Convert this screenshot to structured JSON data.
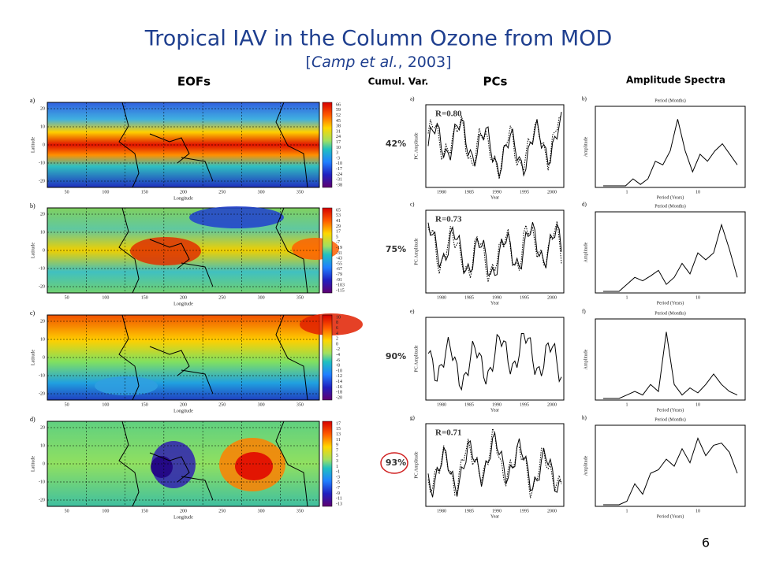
{
  "header": {
    "title": "Tropical IAV in the Column Ozone from MOD",
    "citation": [
      "[",
      "Camp et al.",
      ", 2003]"
    ]
  },
  "columns": {
    "eofs": "EOFs",
    "cumul_var": "Cumul. Var.",
    "pcs": "PCs",
    "spectra": "Amplitude Spectra"
  },
  "map_axes": {
    "xlabel": "Longitude",
    "ylabel": "Latitude",
    "lat_ticks": [
      "20",
      "10",
      "0",
      "-10",
      "-20"
    ],
    "lon_ticks": [
      "50",
      "100",
      "150",
      "200",
      "250",
      "300",
      "350"
    ]
  },
  "pc_axes": {
    "xlabel": "Year",
    "ylabel": "PC Amplitude",
    "year_ticks": [
      "1980",
      "1985",
      "1990",
      "1995",
      "2000"
    ]
  },
  "spectrum_axes": {
    "ylabel": "Amplitude",
    "xlabel": "Period (Years)",
    "top_label": "Period (Months)",
    "period_ticks": [
      "1",
      "10"
    ]
  },
  "rows": [
    {
      "map_label": "a)",
      "colorbar": [
        "66",
        "59",
        "52",
        "45",
        "38",
        "31",
        "24",
        "17",
        "10",
        "3",
        "-3",
        "-10",
        "-17",
        "-24",
        "-31",
        "-38"
      ],
      "cumul_var": "42%",
      "pc_label": "a)",
      "r": "R=0.80",
      "spectrum_label": "b)"
    },
    {
      "map_label": "b)",
      "colorbar": [
        "65",
        "53",
        "41",
        "29",
        "17",
        "5",
        "-7",
        "-19",
        "-31",
        "-43",
        "-55",
        "-67",
        "-79",
        "-91",
        "-103",
        "-115"
      ],
      "cumul_var": "75%",
      "pc_label": "c)",
      "r": "R=0.73",
      "spectrum_label": "d)"
    },
    {
      "map_label": "c)",
      "colorbar": [
        "10",
        "8",
        "6",
        "4",
        "2",
        "0",
        "-2",
        "-4",
        "-6",
        "-8",
        "-10",
        "-12",
        "-14",
        "-16",
        "-18",
        "-20"
      ],
      "cumul_var": "90%",
      "pc_label": "e)",
      "spectrum_label": "f)"
    },
    {
      "map_label": "d)",
      "colorbar": [
        "17",
        "15",
        "13",
        "11",
        "9",
        "7",
        "5",
        "3",
        "1",
        "-1",
        "-3",
        "-5",
        "-7",
        "-9",
        "-11",
        "-13"
      ],
      "cumul_var": "93%",
      "pc_label": "g)",
      "r": "R=0.71",
      "spectrum_label": "h)"
    }
  ],
  "page_number": "6"
}
